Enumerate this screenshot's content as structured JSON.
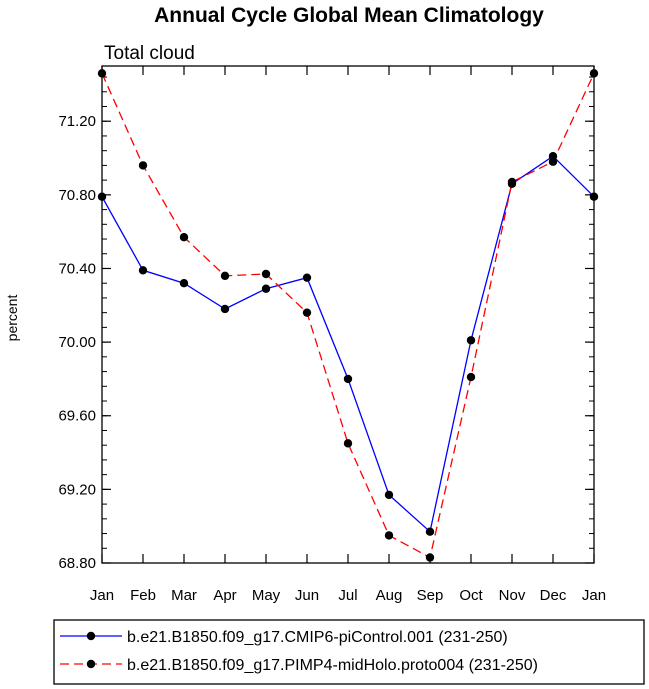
{
  "chart_data": {
    "type": "line",
    "title": "Annual Cycle Global Mean Climatology",
    "subtitle": "Total cloud",
    "xlabel": "",
    "ylabel": "percent",
    "categories": [
      "Jan",
      "Feb",
      "Mar",
      "Apr",
      "May",
      "Jun",
      "Jul",
      "Aug",
      "Sep",
      "Oct",
      "Nov",
      "Dec",
      "Jan"
    ],
    "ylim": [
      68.8,
      71.5
    ],
    "yticks": [
      "68.80",
      "69.20",
      "69.60",
      "70.00",
      "70.40",
      "70.80",
      "71.20"
    ],
    "legend_position": "bottom",
    "series": [
      {
        "name": "b.e21.B1850.f09_g17.CMIP6-piControl.001 (231-250)",
        "color": "#0000ff",
        "dash": "solid",
        "values": [
          70.79,
          70.39,
          70.32,
          70.18,
          70.29,
          70.35,
          69.8,
          69.17,
          68.97,
          70.01,
          70.86,
          71.01,
          70.79
        ]
      },
      {
        "name": "b.e21.B1850.f09_g17.PIMP4-midHolo.proto004 (231-250)",
        "color": "#ff0000",
        "dash": "dashed",
        "values": [
          71.46,
          70.96,
          70.57,
          70.36,
          70.37,
          70.16,
          69.45,
          68.95,
          68.83,
          69.81,
          70.87,
          70.98,
          71.46
        ]
      }
    ]
  }
}
